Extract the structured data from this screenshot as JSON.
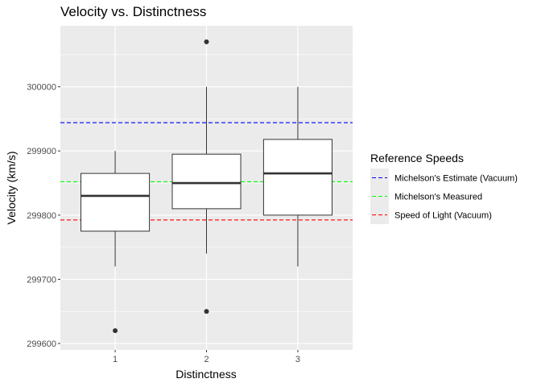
{
  "chart_data": {
    "type": "boxplot",
    "title": "Velocity vs. Distinctness",
    "xlabel": "Distinctness",
    "ylabel": "Velocity (km/s)",
    "categories": [
      "1",
      "2",
      "3"
    ],
    "ylim": [
      299590,
      300095
    ],
    "yticks": [
      299600,
      299700,
      299800,
      299900,
      300000
    ],
    "grid": true,
    "boxes": [
      {
        "category": "1",
        "whisker_low": 299720,
        "q1": 299775,
        "median": 299830,
        "q3": 299865,
        "whisker_high": 299900,
        "outliers": [
          299620
        ]
      },
      {
        "category": "2",
        "whisker_low": 299740,
        "q1": 299810,
        "median": 299850,
        "q3": 299895,
        "whisker_high": 300000,
        "outliers": [
          300070,
          299650
        ]
      },
      {
        "category": "3",
        "whisker_low": 299720,
        "q1": 299800,
        "median": 299865,
        "q3": 299918,
        "whisker_high": 300000,
        "outliers": []
      }
    ],
    "reference_lines": [
      {
        "name": "Michelson's Estimate (Vacuum)",
        "value": 299944,
        "color": "#0000ff"
      },
      {
        "name": "Michelson's Measured",
        "value": 299852,
        "color": "#00ff00"
      },
      {
        "name": "Speed of Light (Vacuum)",
        "value": 299792.458,
        "color": "#ff0000"
      }
    ],
    "legend": {
      "title": "Reference Speeds",
      "position": "right"
    }
  }
}
